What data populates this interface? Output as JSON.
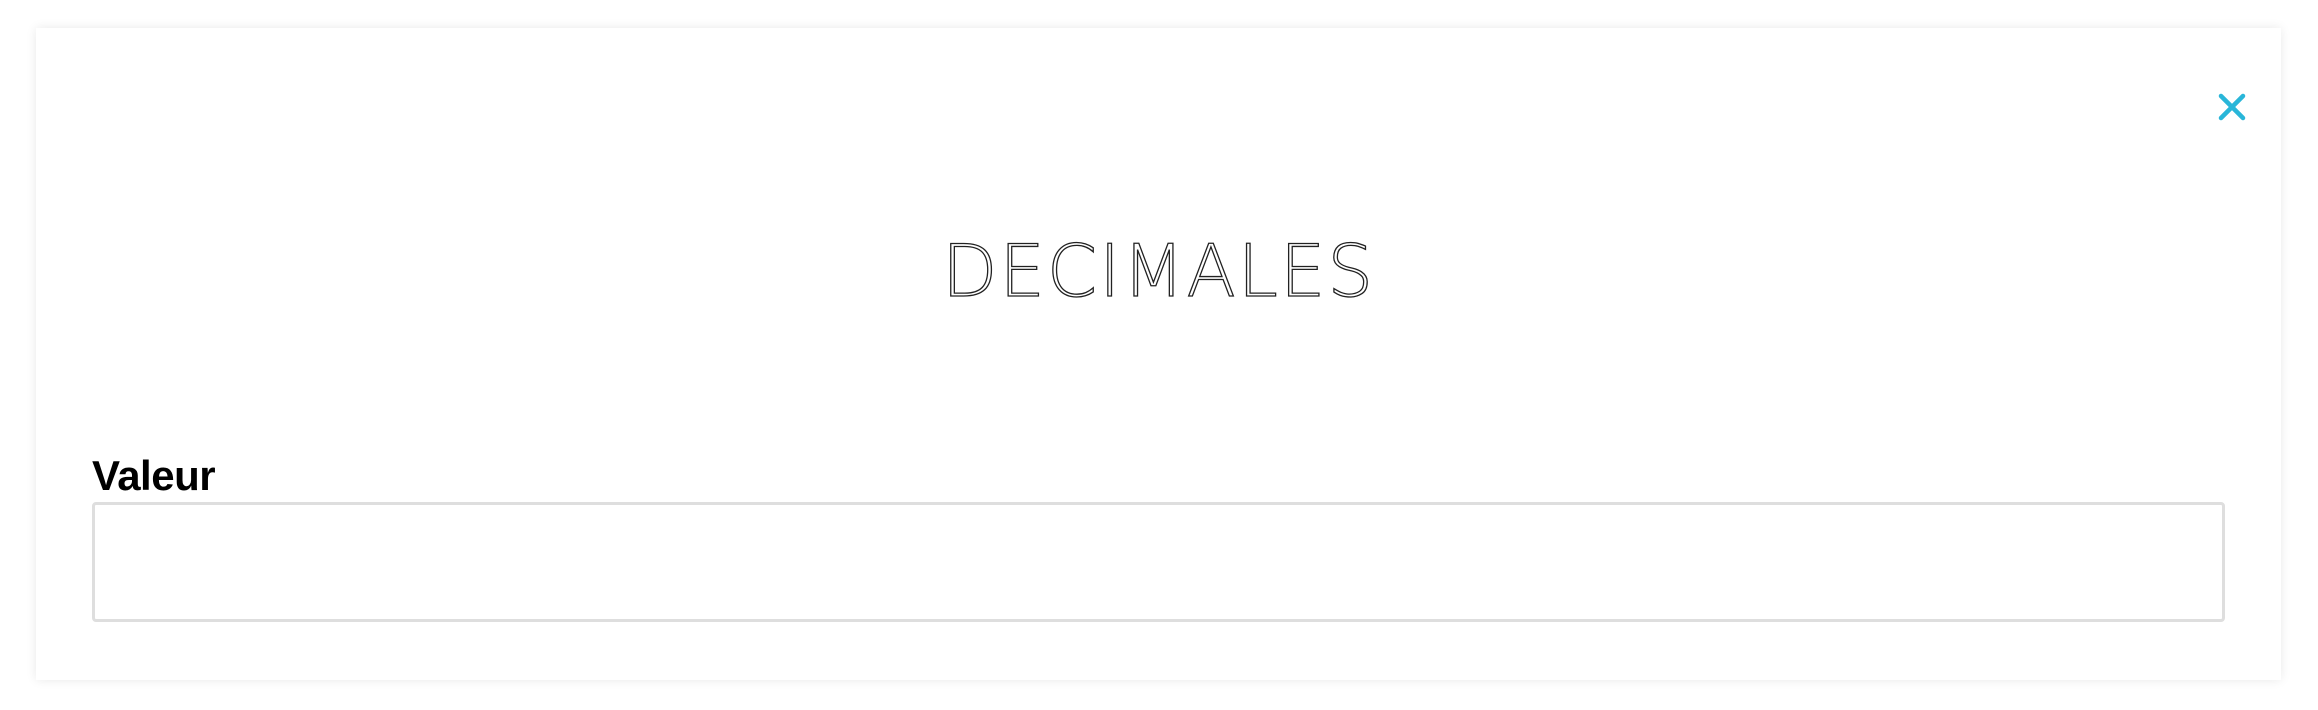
{
  "dialog": {
    "title": "DECIMALES",
    "close_icon": "close-icon",
    "accent_color": "#29b6d9"
  },
  "field": {
    "label": "Valeur",
    "value": "",
    "placeholder": ""
  }
}
